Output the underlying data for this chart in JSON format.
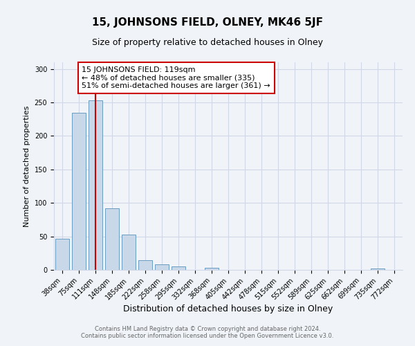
{
  "title": "15, JOHNSONS FIELD, OLNEY, MK46 5JF",
  "subtitle": "Size of property relative to detached houses in Olney",
  "xlabel": "Distribution of detached houses by size in Olney",
  "ylabel": "Number of detached properties",
  "bar_labels": [
    "38sqm",
    "75sqm",
    "111sqm",
    "148sqm",
    "185sqm",
    "222sqm",
    "258sqm",
    "295sqm",
    "332sqm",
    "368sqm",
    "405sqm",
    "442sqm",
    "478sqm",
    "515sqm",
    "552sqm",
    "589sqm",
    "625sqm",
    "662sqm",
    "699sqm",
    "735sqm",
    "772sqm"
  ],
  "bar_values": [
    47,
    235,
    253,
    92,
    53,
    14,
    8,
    5,
    0,
    3,
    0,
    0,
    0,
    0,
    0,
    0,
    0,
    0,
    0,
    2,
    0
  ],
  "bar_color": "#c8d8e8",
  "bar_edge_color": "#6a9bbf",
  "vline_color": "#cc0000",
  "annotation_text": "15 JOHNSONS FIELD: 119sqm\n← 48% of detached houses are smaller (335)\n51% of semi-detached houses are larger (361) →",
  "annotation_box_color": "#ffffff",
  "annotation_box_edge_color": "#cc0000",
  "ylim": [
    0,
    310
  ],
  "yticks": [
    0,
    50,
    100,
    150,
    200,
    250,
    300
  ],
  "footer_line1": "Contains HM Land Registry data © Crown copyright and database right 2024.",
  "footer_line2": "Contains public sector information licensed under the Open Government Licence v3.0.",
  "background_color": "#f0f4f8",
  "grid_color": "#d0d8e8",
  "title_fontsize": 11,
  "subtitle_fontsize": 9,
  "xlabel_fontsize": 9,
  "ylabel_fontsize": 8,
  "tick_fontsize": 7,
  "annotation_fontsize": 8,
  "footer_fontsize": 6
}
